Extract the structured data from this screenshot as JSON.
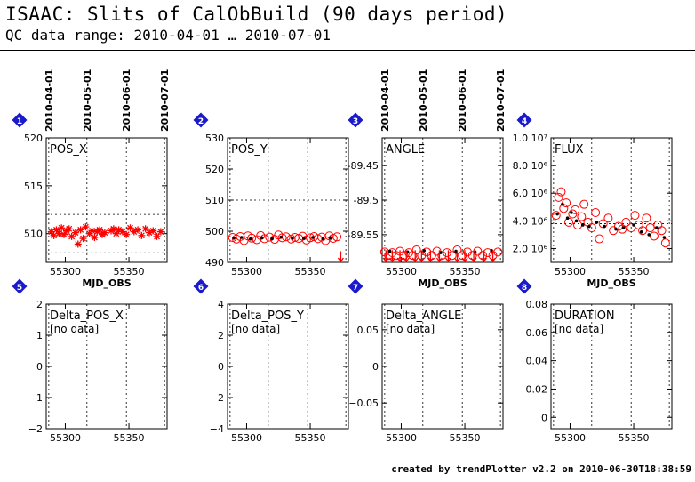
{
  "header": {
    "title": "ISAAC: Slits of CalObBuild (90 days period)",
    "subtitle": "QC data range: 2010-04-01 … 2010-07-01"
  },
  "footer": "created by trendPlotter v2.2 on 2010-06-30T18:38:59",
  "date_ticks": [
    "2010-04-01",
    "2010-05-01",
    "2010-06-01",
    "2010-07-01"
  ],
  "date_tick_mjd": [
    55287,
    55317,
    55348,
    55378
  ],
  "colors": {
    "data": "#ff0000",
    "badge": "#1a1acc",
    "axis": "#000000"
  },
  "chart_data": [
    {
      "id": 1,
      "badge": "1",
      "type": "scatter",
      "title": "POS_X",
      "xlabel": "MJD_OBS",
      "xlim": [
        55285,
        55380
      ],
      "ylim": [
        507,
        520
      ],
      "yticks": [
        "510",
        "515",
        "520"
      ],
      "ytick_values": [
        510,
        515,
        520
      ],
      "xticks": [
        "55300",
        "55350"
      ],
      "xtick_values": [
        55300,
        55350
      ],
      "threshold_lines": [
        508,
        512
      ],
      "series": [
        {
          "marker": "star",
          "x": [
            55289,
            55291,
            55293,
            55295,
            55297,
            55299,
            55301,
            55303,
            55305,
            55308,
            55310,
            55312,
            55314,
            55316,
            55319,
            55321,
            55323,
            55325,
            55327,
            55329,
            55331,
            55336,
            55338,
            55340,
            55342,
            55345,
            55348,
            55351,
            55354,
            55357,
            55360,
            55363,
            55366,
            55369,
            55372,
            55375
          ],
          "y": [
            510.2,
            509.8,
            510.4,
            510.0,
            510.6,
            509.9,
            510.3,
            510.5,
            509.7,
            510.1,
            508.9,
            510.4,
            509.5,
            510.7,
            510.0,
            510.3,
            509.6,
            510.2,
            510.4,
            509.9,
            510.1,
            510.3,
            510.5,
            510.0,
            510.4,
            510.2,
            509.9,
            510.6,
            510.2,
            510.4,
            509.8,
            510.5,
            510.1,
            510.3,
            509.7,
            510.2
          ]
        }
      ]
    },
    {
      "id": 2,
      "badge": "2",
      "type": "scatter",
      "title": "POS_Y",
      "xlabel": "",
      "xlim": [
        55285,
        55380
      ],
      "ylim": [
        490,
        530
      ],
      "yticks": [
        "490",
        "500",
        "510",
        "520",
        "530"
      ],
      "ytick_values": [
        490,
        500,
        510,
        520,
        530
      ],
      "xticks": [
        "55300",
        "55350"
      ],
      "xtick_values": [
        55300,
        55350
      ],
      "threshold_lines": [
        510
      ],
      "series": [
        {
          "marker": "circle",
          "x": [
            55289,
            55292,
            55295,
            55298,
            55301,
            55304,
            55308,
            55311,
            55314,
            55318,
            55322,
            55325,
            55328,
            55331,
            55335,
            55338,
            55341,
            55344,
            55347,
            55350,
            55353,
            55356,
            55359,
            55362,
            55365,
            55368,
            55371
          ],
          "y": [
            498.0,
            497.5,
            498.3,
            497.0,
            498.5,
            497.8,
            497.3,
            498.6,
            497.6,
            498.1,
            497.4,
            498.8,
            497.9,
            498.2,
            497.5,
            498.0,
            497.7,
            498.4,
            497.2,
            497.9,
            498.3,
            497.6,
            498.1,
            497.0,
            498.5,
            497.7,
            498.2
          ]
        },
        {
          "marker": "dot",
          "x": [
            55290,
            55296,
            55303,
            55312,
            55320,
            55327,
            55336,
            55345,
            55352,
            55360,
            55366
          ],
          "y": [
            497.8,
            498.0,
            497.5,
            497.9,
            497.6,
            498.1,
            497.7,
            497.8,
            498.0,
            497.6,
            497.9
          ]
        },
        {
          "marker": "arrow-down",
          "x": [
            55374
          ],
          "y": [
            493.0
          ]
        }
      ]
    },
    {
      "id": 3,
      "badge": "3",
      "type": "scatter",
      "title": "ANGLE",
      "xlabel": "MJD_OBS",
      "xlim": [
        55285,
        55380
      ],
      "ylim": [
        -89.59,
        -89.41
      ],
      "yticks": [
        "-89.45",
        "-89.5",
        "-89.55"
      ],
      "ytick_values": [
        -89.45,
        -89.5,
        -89.55
      ],
      "xticks": [
        "55300",
        "55350"
      ],
      "xtick_values": [
        55300,
        55350
      ],
      "threshold_lines": [],
      "series": [
        {
          "marker": "circle",
          "x": [
            55287,
            55290,
            55293,
            55296,
            55299,
            55302,
            55306,
            55309,
            55312,
            55316,
            55320,
            55324,
            55328,
            55332,
            55336,
            55340,
            55344,
            55348,
            55352,
            55356,
            55360,
            55364,
            55368,
            55372,
            55376
          ],
          "y": [
            -89.575,
            -89.58,
            -89.576,
            -89.58,
            -89.574,
            -89.58,
            -89.576,
            -89.58,
            -89.572,
            -89.58,
            -89.575,
            -89.58,
            -89.574,
            -89.58,
            -89.576,
            -89.58,
            -89.572,
            -89.58,
            -89.575,
            -89.58,
            -89.574,
            -89.58,
            -89.576,
            -89.58,
            -89.575
          ]
        },
        {
          "marker": "dot",
          "x": [
            55291,
            55305,
            55318,
            55331,
            55343,
            55358,
            55371
          ],
          "y": [
            -89.574,
            -89.575,
            -89.573,
            -89.576,
            -89.574,
            -89.575,
            -89.573
          ]
        },
        {
          "marker": "arrow-down",
          "x": [
            55288,
            55293,
            55299,
            55304,
            55311,
            55316,
            55323,
            55330,
            55337,
            55344,
            55350,
            55357,
            55365,
            55372
          ],
          "y": [
            -89.575,
            -89.575,
            -89.575,
            -89.575,
            -89.575,
            -89.575,
            -89.575,
            -89.575,
            -89.575,
            -89.575,
            -89.575,
            -89.575,
            -89.575,
            -89.575
          ]
        }
      ]
    },
    {
      "id": 4,
      "badge": "4",
      "type": "scatter",
      "title": "FLUX",
      "xlabel": "MJD_OBS",
      "xlim": [
        55285,
        55380
      ],
      "ylim": [
        1000000,
        10000000
      ],
      "yticks": [
        "1.0 10⁷",
        "8.0 10⁶",
        "6.0 10⁶",
        "4.0 10⁶",
        "2.0 10⁶"
      ],
      "ytick_values": [
        10000000,
        8000000,
        6000000,
        4000000,
        2000000
      ],
      "xticks": [
        "55300",
        "55350"
      ],
      "xtick_values": [
        55300,
        55350
      ],
      "threshold_lines": [
        3800000
      ],
      "series": [
        {
          "marker": "circle",
          "x": [
            55289,
            55291,
            55293,
            55295,
            55297,
            55299,
            55302,
            55304,
            55306,
            55309,
            55311,
            55314,
            55317,
            55320,
            55323,
            55326,
            55330,
            55334,
            55338,
            55341,
            55344,
            55348,
            55351,
            55354,
            55357,
            55360,
            55363,
            55366,
            55369,
            55372,
            55375
          ],
          "y": [
            4400000,
            5700000,
            6100000,
            4900000,
            5300000,
            3900000,
            4500000,
            4800000,
            3700000,
            4300000,
            5200000,
            3900000,
            3500000,
            4600000,
            2700000,
            3800000,
            4200000,
            3300000,
            3600000,
            3400000,
            3900000,
            3500000,
            4400000,
            3700000,
            3300000,
            4200000,
            3500000,
            2900000,
            3700000,
            3300000,
            2400000
          ]
        },
        {
          "marker": "dot",
          "x": [
            55290,
            55294,
            55298,
            55301,
            55305,
            55310,
            55315,
            55321,
            55327,
            55336,
            55342,
            55350,
            55356,
            55362,
            55368,
            55374
          ],
          "y": [
            4500000,
            5200000,
            4200000,
            4600000,
            4000000,
            3700000,
            3600000,
            3900000,
            3600000,
            3400000,
            3500000,
            3700000,
            3200000,
            3000000,
            3500000,
            2800000
          ]
        }
      ]
    },
    {
      "id": 5,
      "badge": "5",
      "type": "scatter",
      "title": "Delta_POS_X",
      "xlabel": "",
      "xlim": [
        55285,
        55380
      ],
      "ylim": [
        -2,
        2
      ],
      "yticks": [
        "2",
        "1",
        "0",
        "−1",
        "−2"
      ],
      "ytick_values": [
        2,
        1,
        0,
        -1,
        -2
      ],
      "xticks": [
        "55300",
        "55350"
      ],
      "xtick_values": [
        55300,
        55350
      ],
      "threshold_lines": [],
      "annotation": "[no data]",
      "series": []
    },
    {
      "id": 6,
      "badge": "6",
      "type": "scatter",
      "title": "Delta_POS_Y",
      "xlabel": "",
      "xlim": [
        55285,
        55380
      ],
      "ylim": [
        -4,
        4
      ],
      "yticks": [
        "4",
        "2",
        "0",
        "−2",
        "−4"
      ],
      "ytick_values": [
        4,
        2,
        0,
        -2,
        -4
      ],
      "xticks": [
        "55300",
        "55350"
      ],
      "xtick_values": [
        55300,
        55350
      ],
      "threshold_lines": [],
      "annotation": "[no data]",
      "series": []
    },
    {
      "id": 7,
      "badge": "7",
      "type": "scatter",
      "title": "Delta_ANGLE",
      "xlabel": "",
      "xlim": [
        55285,
        55380
      ],
      "ylim": [
        -0.085,
        0.085
      ],
      "yticks": [
        "0.05",
        "0",
        "−0.05"
      ],
      "ytick_values": [
        0.05,
        0,
        -0.05
      ],
      "xticks": [
        "55300",
        "55350"
      ],
      "xtick_values": [
        55300,
        55350
      ],
      "threshold_lines": [],
      "annotation": "[no data]",
      "series": []
    },
    {
      "id": 8,
      "badge": "8",
      "type": "scatter",
      "title": "DURATION",
      "xlabel": "",
      "xlim": [
        55285,
        55380
      ],
      "ylim": [
        -0.008,
        0.08
      ],
      "yticks": [
        "0.08",
        "0.06",
        "0.04",
        "0.02",
        "0"
      ],
      "ytick_values": [
        0.08,
        0.06,
        0.04,
        0.02,
        0
      ],
      "xticks": [
        "55300",
        "55350"
      ],
      "xtick_values": [
        55300,
        55350
      ],
      "threshold_lines": [],
      "annotation": "[no data]",
      "series": []
    }
  ]
}
